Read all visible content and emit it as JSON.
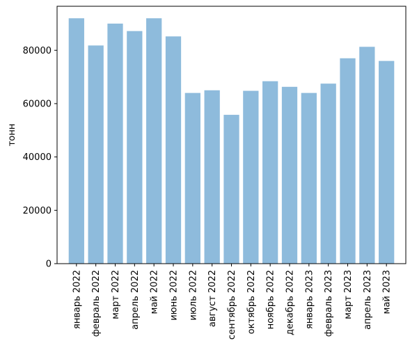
{
  "chart_data": {
    "type": "bar",
    "title": "",
    "xlabel": "",
    "ylabel": "тонн",
    "ylim": [
      0,
      96500
    ],
    "yticks": [
      0,
      20000,
      40000,
      60000,
      80000
    ],
    "grid": false,
    "legend": "none",
    "bar_color": "#8ebbdc",
    "categories": [
      "январь 2022",
      "февраль 2022",
      "март 2022",
      "апрель 2022",
      "май 2022",
      "июнь 2022",
      "июль 2022",
      "август 2022",
      "сентябрь 2022",
      "октябрь 2022",
      "ноябрь 2022",
      "декабрь 2022",
      "январь 2023",
      "февраль 2023",
      "март 2023",
      "апрель 2023",
      "май 2023"
    ],
    "values": [
      92000,
      81800,
      90000,
      87200,
      92000,
      85200,
      64000,
      65000,
      55800,
      64800,
      68400,
      66300,
      64000,
      67500,
      77000,
      81300,
      76000
    ]
  }
}
